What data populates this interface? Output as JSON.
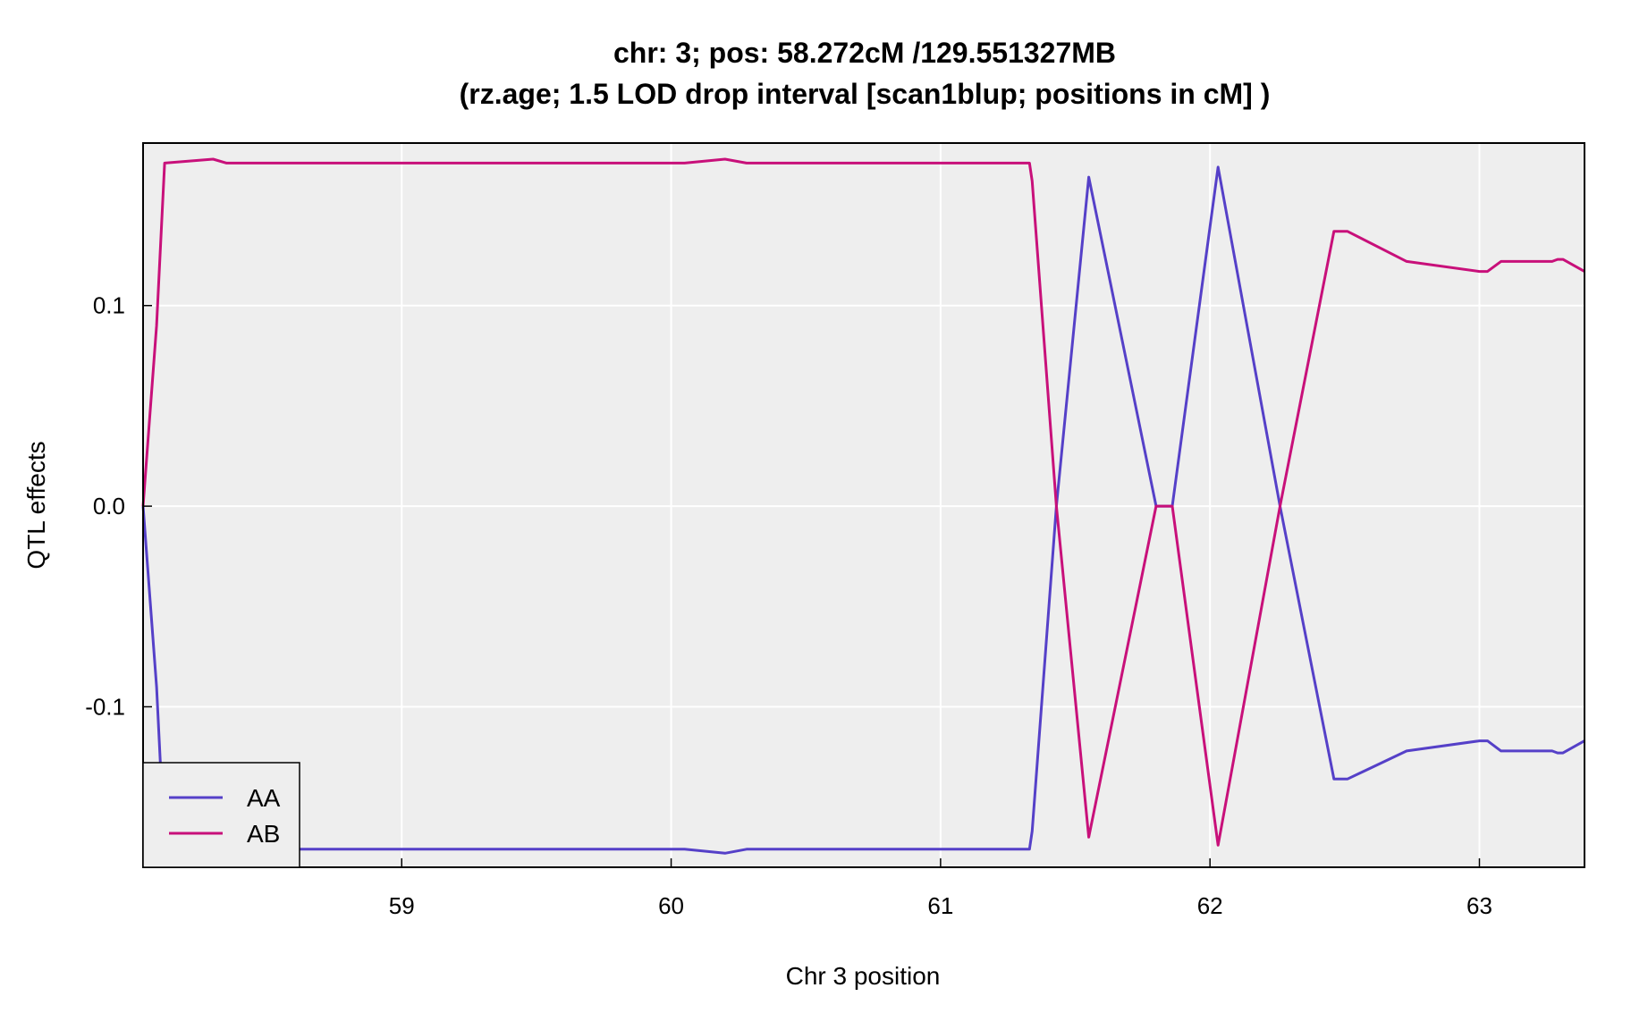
{
  "chart_data": {
    "type": "line",
    "title": "chr: 3; pos: 58.272cM /129.551327MB",
    "subtitle": "(rz.age; 1.5 LOD drop interval [scan1blup; positions in cM] )",
    "xlabel": "Chr 3 position",
    "ylabel": "QTL effects",
    "xlim": [
      58.04,
      63.39
    ],
    "ylim": [
      -0.18,
      0.181
    ],
    "xticks": [
      59,
      60,
      61,
      62,
      63
    ],
    "xtick_labels": [
      "59",
      "60",
      "61",
      "62",
      "63"
    ],
    "yticks": [
      -0.1,
      0.0,
      0.1
    ],
    "ytick_labels": [
      "-0.1",
      "0.0",
      "0.1"
    ],
    "grid": true,
    "background": "#eeeeee",
    "grid_color": "#ffffff",
    "legend": {
      "position": "bottom-left"
    },
    "series": [
      {
        "name": "AA",
        "color": "#5540c8",
        "points": [
          [
            58.04,
            0.0
          ],
          [
            58.09,
            -0.09
          ],
          [
            58.12,
            -0.171
          ],
          [
            58.3,
            -0.173
          ],
          [
            58.35,
            -0.171
          ],
          [
            58.6,
            -0.171
          ],
          [
            60.05,
            -0.171
          ],
          [
            60.2,
            -0.173
          ],
          [
            60.28,
            -0.171
          ],
          [
            61.33,
            -0.171
          ],
          [
            61.34,
            -0.162
          ],
          [
            61.43,
            0.0
          ],
          [
            61.55,
            0.164
          ],
          [
            61.8,
            0.0
          ],
          [
            61.86,
            0.0
          ],
          [
            62.03,
            0.169
          ],
          [
            62.26,
            0.0
          ],
          [
            62.46,
            -0.136
          ],
          [
            62.51,
            -0.136
          ],
          [
            62.73,
            -0.122
          ],
          [
            63.0,
            -0.117
          ],
          [
            63.03,
            -0.117
          ],
          [
            63.08,
            -0.122
          ],
          [
            63.27,
            -0.122
          ],
          [
            63.29,
            -0.123
          ],
          [
            63.31,
            -0.123
          ],
          [
            63.39,
            -0.117
          ]
        ]
      },
      {
        "name": "AB",
        "color": "#c8107a",
        "points": [
          [
            58.04,
            0.0
          ],
          [
            58.09,
            0.09
          ],
          [
            58.12,
            0.171
          ],
          [
            58.3,
            0.173
          ],
          [
            58.35,
            0.171
          ],
          [
            58.6,
            0.171
          ],
          [
            60.05,
            0.171
          ],
          [
            60.2,
            0.173
          ],
          [
            60.28,
            0.171
          ],
          [
            61.33,
            0.171
          ],
          [
            61.34,
            0.162
          ],
          [
            61.43,
            0.0
          ],
          [
            61.55,
            -0.165
          ],
          [
            61.8,
            0.0
          ],
          [
            61.86,
            0.0
          ],
          [
            62.03,
            -0.169
          ],
          [
            62.26,
            0.0
          ],
          [
            62.46,
            0.137
          ],
          [
            62.51,
            0.137
          ],
          [
            62.73,
            0.122
          ],
          [
            63.0,
            0.117
          ],
          [
            63.03,
            0.117
          ],
          [
            63.08,
            0.122
          ],
          [
            63.27,
            0.122
          ],
          [
            63.29,
            0.123
          ],
          [
            63.31,
            0.123
          ],
          [
            63.39,
            0.117
          ]
        ]
      }
    ]
  }
}
